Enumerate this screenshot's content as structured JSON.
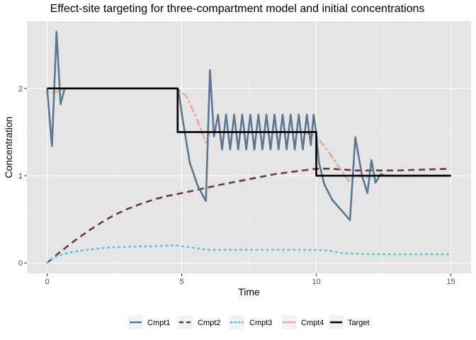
{
  "chart_data": {
    "type": "line",
    "title": "Effect-site targeting for three-compartment model and initial concentrations",
    "xlabel": "Time",
    "ylabel": "Concentration",
    "xlim": [
      -0.75,
      15.75
    ],
    "ylim": [
      -0.12,
      2.77
    ],
    "x_ticks": [
      0,
      5,
      10,
      15
    ],
    "x_tick_labels": [
      "0",
      "5",
      "10",
      "15"
    ],
    "y_ticks": [
      0,
      1,
      2
    ],
    "y_tick_labels": [
      "0",
      "1",
      "2"
    ],
    "grid": true,
    "legend_position": "bottom",
    "colors": {
      "panel_bg": "#e5e5e5",
      "grid_major": "#ffffff",
      "Cmpt1": "#5b7793",
      "Cmpt2": "#6b3a3f",
      "Cmpt3": "#5bc3d6",
      "Cmpt4": "#e0aba0",
      "Target": "#000000"
    },
    "series": [
      {
        "name": "Cmpt1",
        "dash": "solid",
        "x": [
          0,
          0.18,
          0.35,
          0.5,
          0.65,
          0.8,
          1,
          2,
          3,
          4,
          4.85,
          4.88,
          5.05,
          5.3,
          5.6,
          5.9,
          6.05,
          6.2,
          6.35,
          6.5,
          6.65,
          6.8,
          6.95,
          7.1,
          7.25,
          7.4,
          7.55,
          7.7,
          7.85,
          8.0,
          8.15,
          8.3,
          8.45,
          8.6,
          8.75,
          8.9,
          9.05,
          9.2,
          9.35,
          9.5,
          9.65,
          9.8,
          9.9,
          10.0,
          10.1,
          10.3,
          10.6,
          11.0,
          11.25,
          11.45,
          11.7,
          11.9,
          12.05,
          12.2,
          12.4,
          12.55,
          13,
          14,
          15
        ],
        "y": [
          2.0,
          1.34,
          2.65,
          1.82,
          2.0,
          2.0,
          2.0,
          2.0,
          2.0,
          2.0,
          2.0,
          1.98,
          1.62,
          1.15,
          0.88,
          0.71,
          2.21,
          1.45,
          1.7,
          1.3,
          1.7,
          1.3,
          1.7,
          1.3,
          1.7,
          1.3,
          1.7,
          1.3,
          1.7,
          1.3,
          1.7,
          1.3,
          1.7,
          1.3,
          1.7,
          1.3,
          1.7,
          1.3,
          1.7,
          1.3,
          1.7,
          1.35,
          1.7,
          1.48,
          1.15,
          0.9,
          0.72,
          0.58,
          0.49,
          1.44,
          1.0,
          0.8,
          1.18,
          0.92,
          1.02,
          1.0,
          1.0,
          1.0,
          1.0
        ]
      },
      {
        "name": "Cmpt2",
        "dash": "dashed",
        "x": [
          0,
          0.5,
          1,
          1.5,
          2,
          2.5,
          3,
          3.5,
          4,
          4.5,
          4.85,
          5.3,
          5.9,
          6.5,
          7,
          7.5,
          8,
          8.5,
          9,
          9.5,
          10,
          10.5,
          11,
          11.5,
          12,
          13,
          14,
          15
        ],
        "y": [
          0,
          0.13,
          0.25,
          0.36,
          0.46,
          0.55,
          0.62,
          0.68,
          0.73,
          0.77,
          0.79,
          0.82,
          0.86,
          0.9,
          0.93,
          0.96,
          0.99,
          1.02,
          1.04,
          1.06,
          1.08,
          1.08,
          1.07,
          1.06,
          1.06,
          1.06,
          1.07,
          1.08
        ]
      },
      {
        "name": "Cmpt3",
        "dash": "dotted",
        "x": [
          0,
          0.3,
          0.6,
          1,
          1.5,
          2,
          2.5,
          3,
          3.5,
          4,
          4.5,
          4.85,
          5.5,
          6,
          7,
          8,
          9,
          10,
          10.5,
          11,
          12,
          13,
          14,
          15
        ],
        "y": [
          0,
          0.07,
          0.1,
          0.13,
          0.15,
          0.17,
          0.18,
          0.185,
          0.19,
          0.19,
          0.2,
          0.2,
          0.17,
          0.15,
          0.15,
          0.15,
          0.15,
          0.15,
          0.14,
          0.11,
          0.1,
          0.1,
          0.1,
          0.1
        ]
      },
      {
        "name": "Cmpt4",
        "dash": "dotdash",
        "x": [
          0,
          0.3,
          0.6,
          1,
          2,
          3,
          4,
          4.85,
          5.2,
          5.6,
          5.9,
          6.05,
          7,
          8,
          9,
          9.5,
          10,
          10.4,
          10.8,
          11.2,
          11.45,
          11.8,
          12.2,
          13,
          14,
          15
        ],
        "y": [
          1.96,
          1.95,
          2.0,
          2.0,
          2.0,
          2.0,
          2.0,
          2.0,
          1.9,
          1.62,
          1.38,
          1.5,
          1.5,
          1.5,
          1.5,
          1.5,
          1.45,
          1.3,
          1.12,
          0.94,
          1.0,
          0.98,
          1.0,
          1.0,
          1.0,
          1.0
        ]
      },
      {
        "name": "Target",
        "dash": "solid",
        "x": [
          0,
          4.85,
          4.85,
          10.0,
          10.0,
          15
        ],
        "y": [
          2.0,
          2.0,
          1.5,
          1.5,
          1.0,
          1.0
        ]
      }
    ],
    "legend": [
      "Cmpt1",
      "Cmpt2",
      "Cmpt3",
      "Cmpt4",
      "Target"
    ]
  }
}
